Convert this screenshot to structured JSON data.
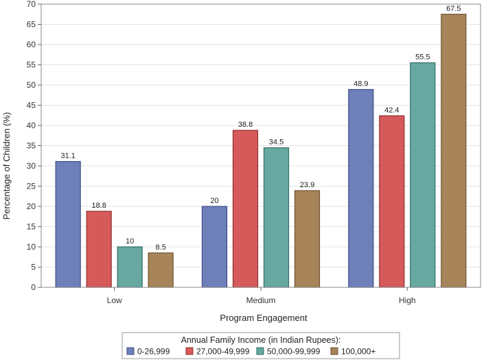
{
  "chart_data": {
    "type": "bar",
    "title": "",
    "xlabel": "Program Engagement",
    "ylabel": "Percentage of Children (%)",
    "ylim": [
      0,
      70
    ],
    "yticks": [
      0,
      5,
      10,
      15,
      20,
      25,
      30,
      35,
      40,
      45,
      50,
      55,
      60,
      65,
      70
    ],
    "categories": [
      "Low",
      "Medium",
      "High"
    ],
    "grid": true,
    "legend": {
      "title": "Annual Family Income (in Indian Rupees):",
      "placement": "bottom-center"
    },
    "series": [
      {
        "name": "0-26,999",
        "color": "#6e7fb9",
        "border": "#3f4d85",
        "values": [
          31.1,
          20,
          48.9
        ],
        "labels": [
          "31.1",
          "20",
          "48.9"
        ]
      },
      {
        "name": "27,000-49,999",
        "color": "#d65a5a",
        "border": "#8e2f2f",
        "values": [
          18.8,
          38.8,
          42.4
        ],
        "labels": [
          "18.8",
          "38.8",
          "42.4"
        ]
      },
      {
        "name": "50,000-99,999",
        "color": "#67a8a0",
        "border": "#2f6e66",
        "values": [
          10,
          34.5,
          55.5
        ],
        "labels": [
          "10",
          "34.5",
          "55.5"
        ]
      },
      {
        "name": "100,000+",
        "color": "#a8845a",
        "border": "#6e5230",
        "values": [
          8.5,
          23.9,
          67.5
        ],
        "labels": [
          "8.5",
          "23.9",
          "67.5"
        ]
      }
    ]
  }
}
